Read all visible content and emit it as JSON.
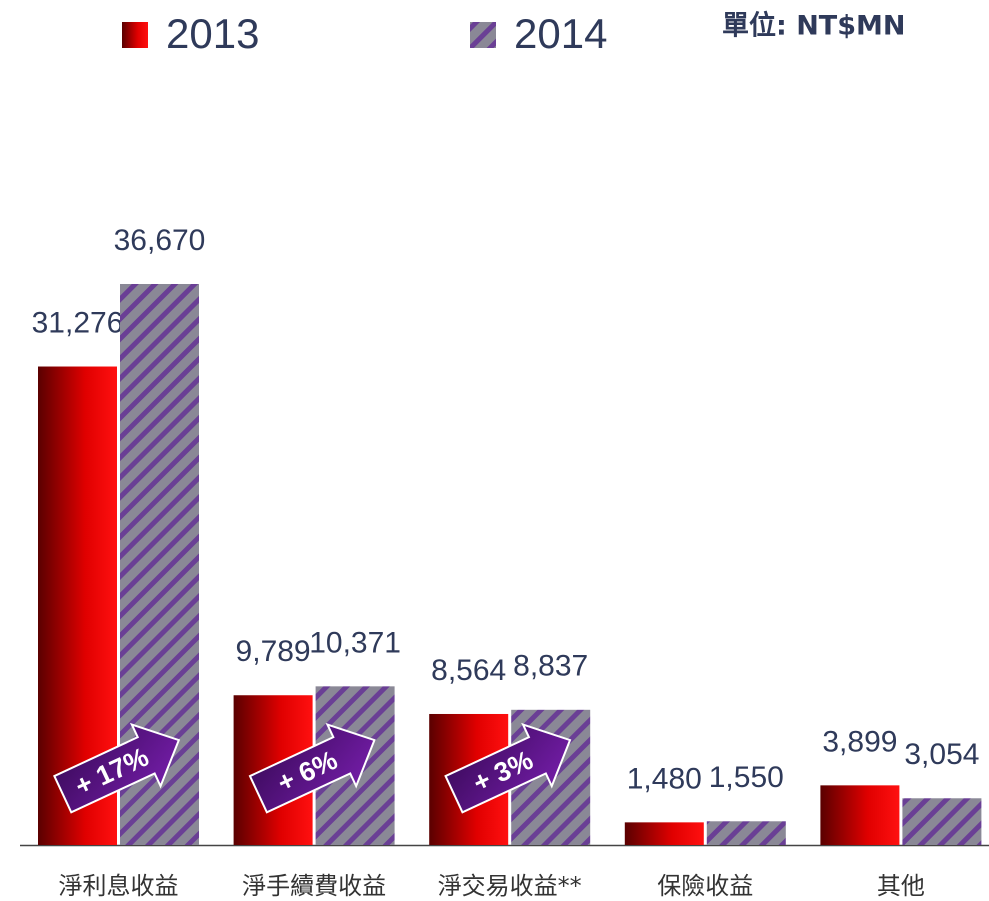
{
  "chart_data": {
    "type": "bar",
    "unit": "單位: NT$MN",
    "categories": [
      "淨利息收益",
      "淨手續費收益",
      "淨交易收益**",
      "保險收益",
      "其他"
    ],
    "series": [
      {
        "name": "2013",
        "color": "#e00000",
        "values": [
          31276,
          9789,
          8564,
          1480,
          3899
        ],
        "value_labels": [
          "31,276",
          "9,789",
          "8,564",
          "1,480",
          "3,899"
        ]
      },
      {
        "name": "2014",
        "color": "#8a8896",
        "values": [
          36670,
          10371,
          8837,
          1550,
          3054
        ],
        "value_labels": [
          "36,670",
          "10,371",
          "8,837",
          "1,550",
          "3,054"
        ]
      }
    ],
    "annotations": [
      "+ 17%",
      "+ 6%",
      "+ 3%"
    ]
  }
}
